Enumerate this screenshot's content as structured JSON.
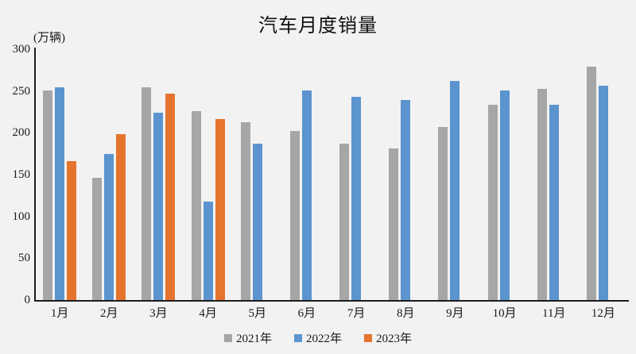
{
  "title": "汽车月度销量",
  "y_axis_unit_label": "(万辆)",
  "colors": {
    "background": "#f2f2f2",
    "axis": "#1c1c1c",
    "series_2021": "#a6a6a6",
    "series_2022": "#5b94ce",
    "series_2023": "#e5742e"
  },
  "legend": [
    {
      "label": "2021年",
      "color": "#a6a6a6"
    },
    {
      "label": "2022年",
      "color": "#5b94ce"
    },
    {
      "label": "2023年",
      "color": "#e5742e"
    }
  ],
  "chart_data": {
    "type": "bar",
    "title": "汽车月度销量",
    "ylabel": "(万辆)",
    "xlabel": "",
    "ylim": [
      0,
      300
    ],
    "yticks": [
      0,
      50,
      100,
      150,
      200,
      250,
      300
    ],
    "grid": false,
    "legend_position": "bottom",
    "categories": [
      "1月",
      "2月",
      "3月",
      "4月",
      "5月",
      "6月",
      "7月",
      "8月",
      "9月",
      "10月",
      "11月",
      "12月"
    ],
    "series": [
      {
        "name": "2021年",
        "color": "#a6a6a6",
        "values": [
          251,
          146,
          254,
          226,
          213,
          202,
          187,
          181,
          207,
          234,
          253,
          279
        ]
      },
      {
        "name": "2022年",
        "color": "#5b94ce",
        "values": [
          254,
          175,
          224,
          118,
          187,
          251,
          243,
          239,
          262,
          251,
          234,
          256
        ]
      },
      {
        "name": "2023年",
        "color": "#e5742e",
        "values": [
          166,
          198,
          247,
          216,
          null,
          null,
          null,
          null,
          null,
          null,
          null,
          null
        ]
      }
    ]
  }
}
